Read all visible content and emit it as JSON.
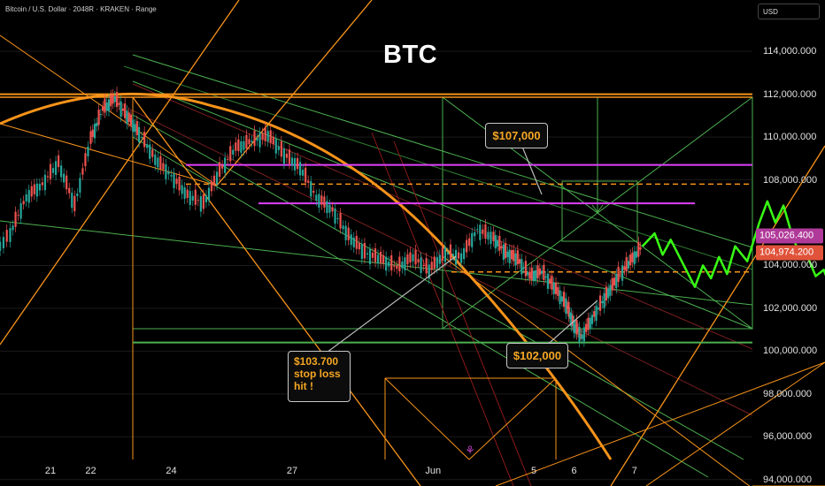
{
  "header": {
    "symbol_line": "Bitcoin / U.S. Dollar · 2048R · KRAKEN · Range",
    "currency_button": "USD"
  },
  "chart_data": {
    "type": "candlestick",
    "title": "BTC",
    "ylim": [
      93700,
      116400
    ],
    "y_ticks": [
      "114,000.000",
      "112,000.000",
      "110,000.000",
      "108,000.000",
      "104,000.000",
      "102,000.000",
      "100,000.000",
      "98,000.000",
      "96,000.000",
      "94,000.000"
    ],
    "y_tick_values": [
      114000,
      112000,
      110000,
      108000,
      104000,
      102000,
      100000,
      98000,
      96000,
      94000
    ],
    "x_ticks": [
      "21",
      "22",
      "24",
      "27",
      "Jun",
      "5",
      "6",
      "7"
    ],
    "price_labels": [
      {
        "text": "105,026.400",
        "value": 105026.4,
        "color": "#b03a9a"
      },
      {
        "text": "104,974.200",
        "value": 104974.2,
        "color": "#e0533a"
      }
    ],
    "price_path": [
      {
        "day": 19.0,
        "price": 102500
      },
      {
        "day": 19.5,
        "price": 104400
      },
      {
        "day": 20.0,
        "price": 105500
      },
      {
        "day": 20.4,
        "price": 107200
      },
      {
        "day": 20.8,
        "price": 107800
      },
      {
        "day": 21.2,
        "price": 108800
      },
      {
        "day": 21.6,
        "price": 106800
      },
      {
        "day": 22.0,
        "price": 109900
      },
      {
        "day": 22.3,
        "price": 111300
      },
      {
        "day": 22.6,
        "price": 111800
      },
      {
        "day": 22.9,
        "price": 111000
      },
      {
        "day": 23.2,
        "price": 110200
      },
      {
        "day": 23.6,
        "price": 109000
      },
      {
        "day": 24.0,
        "price": 108200
      },
      {
        "day": 24.4,
        "price": 107300
      },
      {
        "day": 24.8,
        "price": 106900
      },
      {
        "day": 25.2,
        "price": 108400
      },
      {
        "day": 25.6,
        "price": 109500
      },
      {
        "day": 26.0,
        "price": 109800
      },
      {
        "day": 26.4,
        "price": 110100
      },
      {
        "day": 26.8,
        "price": 109200
      },
      {
        "day": 27.2,
        "price": 108600
      },
      {
        "day": 27.6,
        "price": 107200
      },
      {
        "day": 28.0,
        "price": 106600
      },
      {
        "day": 28.4,
        "price": 105400
      },
      {
        "day": 28.8,
        "price": 104600
      },
      {
        "day": 29.2,
        "price": 104300
      },
      {
        "day": 29.6,
        "price": 103900
      },
      {
        "day": 30.0,
        "price": 104400
      },
      {
        "day": 30.4,
        "price": 103800
      },
      {
        "day": 30.8,
        "price": 104600
      },
      {
        "day": 31.2,
        "price": 104400
      },
      {
        "day": 31.6,
        "price": 105700
      },
      {
        "day": 32.0,
        "price": 105300
      },
      {
        "day": 32.3,
        "price": 104600
      },
      {
        "day": 32.6,
        "price": 104300
      },
      {
        "day": 32.9,
        "price": 103500
      },
      {
        "day": 33.2,
        "price": 103700
      },
      {
        "day": 33.5,
        "price": 103000
      },
      {
        "day": 33.8,
        "price": 102200
      },
      {
        "day": 34.0,
        "price": 101200
      },
      {
        "day": 34.2,
        "price": 100700
      },
      {
        "day": 34.5,
        "price": 101700
      },
      {
        "day": 34.8,
        "price": 102600
      },
      {
        "day": 35.1,
        "price": 103500
      },
      {
        "day": 35.4,
        "price": 104200
      },
      {
        "day": 35.7,
        "price": 104900
      }
    ],
    "projection_path": [
      {
        "day": 35.7,
        "price": 104900
      },
      {
        "day": 36.0,
        "price": 105500
      },
      {
        "day": 36.2,
        "price": 104500
      },
      {
        "day": 36.4,
        "price": 105200
      },
      {
        "day": 36.7,
        "price": 104100
      },
      {
        "day": 37.0,
        "price": 103000
      },
      {
        "day": 37.2,
        "price": 104000
      },
      {
        "day": 37.4,
        "price": 103400
      },
      {
        "day": 37.6,
        "price": 104400
      },
      {
        "day": 37.8,
        "price": 103600
      },
      {
        "day": 38.0,
        "price": 104900
      },
      {
        "day": 38.3,
        "price": 104200
      },
      {
        "day": 38.6,
        "price": 106000
      },
      {
        "day": 38.8,
        "price": 107000
      },
      {
        "day": 39.0,
        "price": 106000
      },
      {
        "day": 39.2,
        "price": 106800
      },
      {
        "day": 39.4,
        "price": 105500
      },
      {
        "day": 39.6,
        "price": 104500
      },
      {
        "day": 39.8,
        "price": 104400
      },
      {
        "day": 40.0,
        "price": 103500
      },
      {
        "day": 40.2,
        "price": 103800
      },
      {
        "day": 40.4,
        "price": 102800
      },
      {
        "day": 40.7,
        "price": 102600
      },
      {
        "day": 41.0,
        "price": 101800
      },
      {
        "day": 41.2,
        "price": 102500
      },
      {
        "day": 41.4,
        "price": 102200
      },
      {
        "day": 41.6,
        "price": 103200
      },
      {
        "day": 41.8,
        "price": 102900
      },
      {
        "day": 42.0,
        "price": 103900
      },
      {
        "day": 42.3,
        "price": 104900
      }
    ],
    "horizontal_levels": [
      {
        "price": 112000,
        "color": "#f7931a",
        "style": "solid"
      },
      {
        "price": 108700,
        "color": "#e040fb",
        "style": "solid"
      },
      {
        "price": 107800,
        "color": "#f7931a",
        "style": "dashed"
      },
      {
        "price": 106900,
        "color": "#e040fb",
        "style": "solid"
      },
      {
        "price": 103700,
        "color": "#f7931a",
        "style": "dashed"
      },
      {
        "price": 100400,
        "color": "#4caf50",
        "style": "solid"
      }
    ],
    "callouts": [
      {
        "id": "target",
        "text": "$107,000",
        "price": 107000
      },
      {
        "id": "stop",
        "lines": [
          "$103.700",
          "stop loss",
          "hit !"
        ],
        "price": 103700
      },
      {
        "id": "dip",
        "text": "$102,000",
        "price": 102000
      }
    ]
  }
}
